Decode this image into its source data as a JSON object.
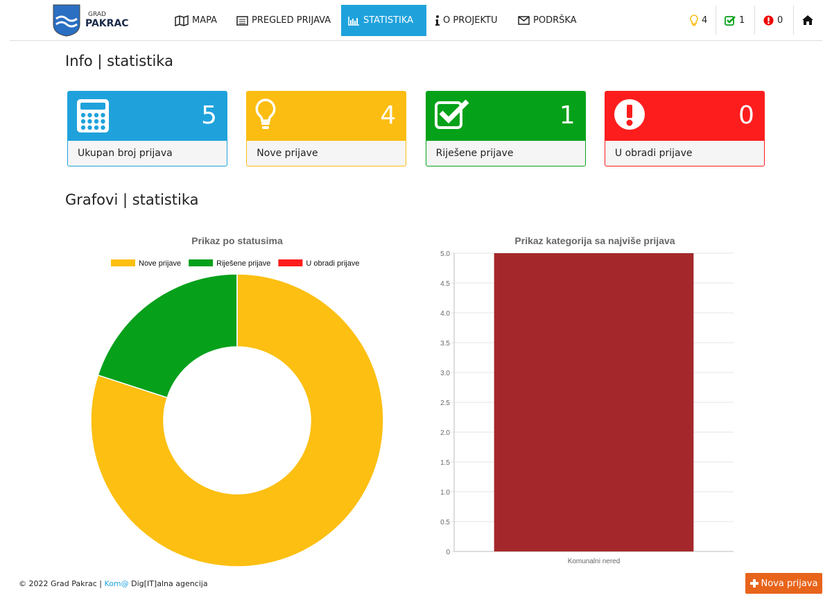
{
  "nav": {
    "logo_top": "GRAD",
    "logo_bottom": "PAKRAC",
    "items": [
      "MAPA",
      "PREGLED PRIJAVA",
      "STATISTIKA",
      "O PROJEKTU",
      "PODRŠKA"
    ],
    "active": 2,
    "counters": [
      4,
      1,
      0
    ]
  },
  "info": {
    "title": "Info | statistika",
    "cards": [
      {
        "value": 5,
        "label": "Ukupan broj prijava",
        "color": "#1fa2dc"
      },
      {
        "value": 4,
        "label": "Nove prijave",
        "color": "#fbbd12"
      },
      {
        "value": 1,
        "label": "Riješene prijave",
        "color": "#04a119"
      },
      {
        "value": 0,
        "label": "U obradi prijave",
        "color": "#fd1d1d"
      }
    ]
  },
  "charts_title": "Grafovi | statistika",
  "chart_data": [
    {
      "type": "doughnut",
      "title": "Prikaz po statusima",
      "categories": [
        "Nove prijave",
        "Riješene prijave",
        "U obradi prijave"
      ],
      "values": [
        4,
        1,
        0
      ],
      "colors": [
        "#fcbf12",
        "#06a01b",
        "#ff1c1c"
      ],
      "legend": "top"
    },
    {
      "type": "bar",
      "title": "Prikaz kategorija sa najviše prijava",
      "categories": [
        "Komunalni nered"
      ],
      "values": [
        5
      ],
      "color": "#a4282b",
      "ylim": [
        0,
        5
      ],
      "yticks": [
        0,
        0.5,
        {
          "value": 1,
          "label": "1.0"
        },
        1.5,
        {
          "value": 2,
          "label": "2.0"
        },
        2.5,
        {
          "value": 3,
          "label": "3.0"
        },
        3.5,
        {
          "value": 4,
          "label": "4.0"
        },
        4.5,
        {
          "value": 5,
          "label": "5.0"
        }
      ],
      "grid": true
    }
  ],
  "footer": {
    "copyright": "© 2022 Grad Pakrac |",
    "link": "Kom@",
    "agency": "Dig[IT]alna agencija",
    "button": "Nova prijava"
  }
}
